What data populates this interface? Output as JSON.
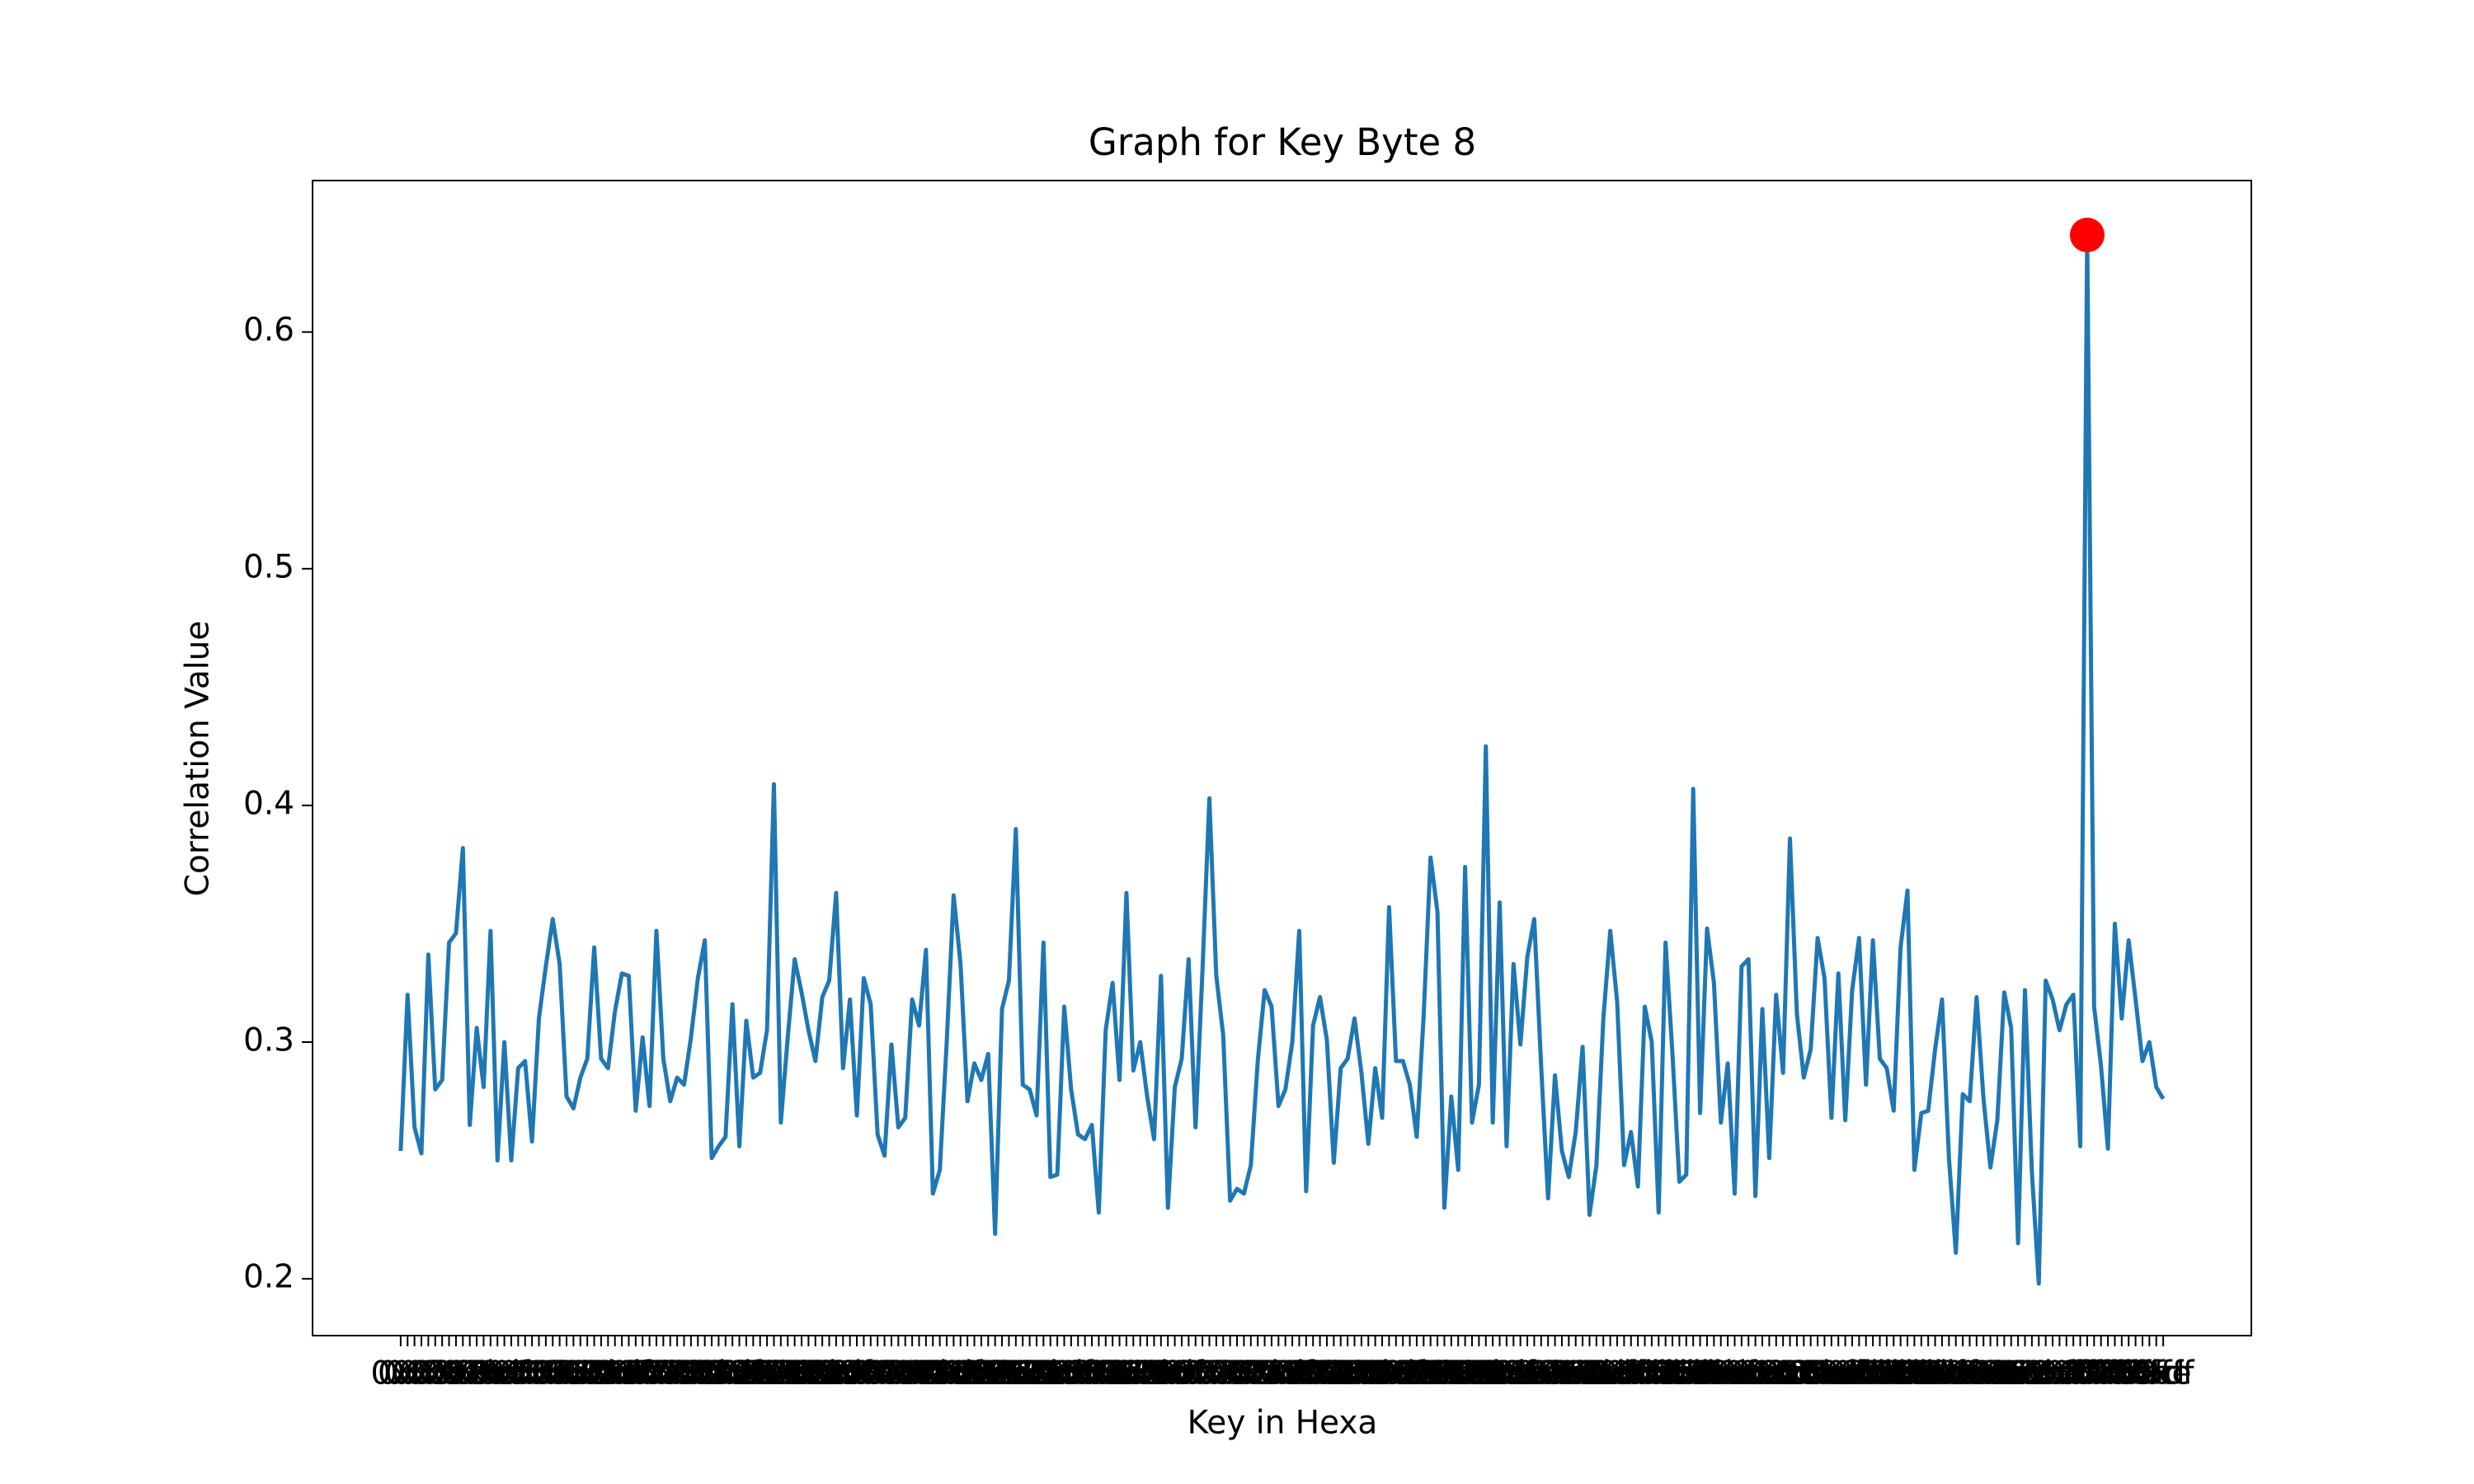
{
  "chart_data": {
    "type": "line",
    "title": "Graph for Key Byte 8",
    "x_label": "Key in Hexa",
    "y_label": "Correlation Value",
    "categories": [
      "0x0",
      "0x1",
      "0x2",
      "0x3",
      "0x4",
      "0x5",
      "0x6",
      "0x7",
      "0x8",
      "0x9",
      "0xa",
      "0xb",
      "0xc",
      "0xd",
      "0xe",
      "0xf",
      "0x10",
      "0x11",
      "0x12",
      "0x13",
      "0x14",
      "0x15",
      "0x16",
      "0x17",
      "0x18",
      "0x19",
      "0x1a",
      "0x1b",
      "0x1c",
      "0x1d",
      "0x1e",
      "0x1f",
      "0x20",
      "0x21",
      "0x22",
      "0x23",
      "0x24",
      "0x25",
      "0x26",
      "0x27",
      "0x28",
      "0x29",
      "0x2a",
      "0x2b",
      "0x2c",
      "0x2d",
      "0x2e",
      "0x2f",
      "0x30",
      "0x31",
      "0x32",
      "0x33",
      "0x34",
      "0x35",
      "0x36",
      "0x37",
      "0x38",
      "0x39",
      "0x3a",
      "0x3b",
      "0x3c",
      "0x3d",
      "0x3e",
      "0x3f",
      "0x40",
      "0x41",
      "0x42",
      "0x43",
      "0x44",
      "0x45",
      "0x46",
      "0x47",
      "0x48",
      "0x49",
      "0x4a",
      "0x4b",
      "0x4c",
      "0x4d",
      "0x4e",
      "0x4f",
      "0x50",
      "0x51",
      "0x52",
      "0x53",
      "0x54",
      "0x55",
      "0x56",
      "0x57",
      "0x58",
      "0x59",
      "0x5a",
      "0x5b",
      "0x5c",
      "0x5d",
      "0x5e",
      "0x5f",
      "0x60",
      "0x61",
      "0x62",
      "0x63",
      "0x64",
      "0x65",
      "0x66",
      "0x67",
      "0x68",
      "0x69",
      "0x6a",
      "0x6b",
      "0x6c",
      "0x6d",
      "0x6e",
      "0x6f",
      "0x70",
      "0x71",
      "0x72",
      "0x73",
      "0x74",
      "0x75",
      "0x76",
      "0x77",
      "0x78",
      "0x79",
      "0x7a",
      "0x7b",
      "0x7c",
      "0x7d",
      "0x7e",
      "0x7f",
      "0x80",
      "0x81",
      "0x82",
      "0x83",
      "0x84",
      "0x85",
      "0x86",
      "0x87",
      "0x88",
      "0x89",
      "0x8a",
      "0x8b",
      "0x8c",
      "0x8d",
      "0x8e",
      "0x8f",
      "0x90",
      "0x91",
      "0x92",
      "0x93",
      "0x94",
      "0x95",
      "0x96",
      "0x97",
      "0x98",
      "0x99",
      "0x9a",
      "0x9b",
      "0x9c",
      "0x9d",
      "0x9e",
      "0x9f",
      "0xa0",
      "0xa1",
      "0xa2",
      "0xa3",
      "0xa4",
      "0xa5",
      "0xa6",
      "0xa7",
      "0xa8",
      "0xa9",
      "0xaa",
      "0xab",
      "0xac",
      "0xad",
      "0xae",
      "0xaf",
      "0xb0",
      "0xb1",
      "0xb2",
      "0xb3",
      "0xb4",
      "0xb5",
      "0xb6",
      "0xb7",
      "0xb8",
      "0xb9",
      "0xba",
      "0xbb",
      "0xbc",
      "0xbd",
      "0xbe",
      "0xbf",
      "0xc0",
      "0xc1",
      "0xc2",
      "0xc3",
      "0xc4",
      "0xc5",
      "0xc6",
      "0xc7",
      "0xc8",
      "0xc9",
      "0xca",
      "0xcb",
      "0xcc",
      "0xcd",
      "0xce",
      "0xcf",
      "0xd0",
      "0xd1",
      "0xd2",
      "0xd3",
      "0xd4",
      "0xd5",
      "0xd6",
      "0xd7",
      "0xd8",
      "0xd9",
      "0xda",
      "0xdb",
      "0xdc",
      "0xdd",
      "0xde",
      "0xdf",
      "0xe0",
      "0xe1",
      "0xe2",
      "0xe3",
      "0xe4",
      "0xe5",
      "0xe6",
      "0xe7",
      "0xe8",
      "0xe9",
      "0xea",
      "0xeb",
      "0xec",
      "0xed",
      "0xee",
      "0xef",
      "0xf0",
      "0xf1",
      "0xf2",
      "0xf3",
      "0xf4",
      "0xf5",
      "0xf6",
      "0xf7",
      "0xf8",
      "0xf9",
      "0xfa",
      "0xfb",
      "0xfc",
      "0xfd",
      "0xfe",
      "0xff"
    ],
    "values": [
      0.254,
      0.32,
      0.264,
      0.253,
      0.337,
      0.28,
      0.284,
      0.342,
      0.346,
      0.382,
      0.265,
      0.306,
      0.281,
      0.347,
      0.25,
      0.3,
      0.25,
      0.289,
      0.292,
      0.258,
      0.31,
      0.332,
      0.352,
      0.333,
      0.277,
      0.272,
      0.285,
      0.293,
      0.34,
      0.293,
      0.289,
      0.313,
      0.329,
      0.328,
      0.271,
      0.302,
      0.273,
      0.347,
      0.293,
      0.275,
      0.285,
      0.282,
      0.302,
      0.327,
      0.343,
      0.251,
      0.256,
      0.26,
      0.316,
      0.256,
      0.309,
      0.285,
      0.287,
      0.305,
      0.409,
      0.266,
      0.302,
      0.335,
      0.321,
      0.305,
      0.292,
      0.319,
      0.326,
      0.363,
      0.289,
      0.318,
      0.269,
      0.327,
      0.316,
      0.261,
      0.252,
      0.299,
      0.264,
      0.268,
      0.318,
      0.307,
      0.339,
      0.236,
      0.246,
      0.3,
      0.362,
      0.333,
      0.275,
      0.291,
      0.284,
      0.295,
      0.219,
      0.314,
      0.326,
      0.39,
      0.282,
      0.28,
      0.269,
      0.342,
      0.243,
      0.244,
      0.315,
      0.28,
      0.261,
      0.259,
      0.265,
      0.228,
      0.305,
      0.325,
      0.284,
      0.363,
      0.288,
      0.3,
      0.277,
      0.259,
      0.328,
      0.23,
      0.281,
      0.293,
      0.335,
      0.264,
      0.33,
      0.403,
      0.328,
      0.303,
      0.233,
      0.238,
      0.236,
      0.248,
      0.292,
      0.322,
      0.315,
      0.273,
      0.28,
      0.3,
      0.347,
      0.237,
      0.307,
      0.319,
      0.301,
      0.249,
      0.289,
      0.293,
      0.31,
      0.287,
      0.257,
      0.289,
      0.268,
      0.357,
      0.292,
      0.292,
      0.282,
      0.26,
      0.311,
      0.378,
      0.355,
      0.23,
      0.277,
      0.246,
      0.374,
      0.266,
      0.282,
      0.425,
      0.266,
      0.359,
      0.256,
      0.333,
      0.299,
      0.336,
      0.352,
      0.29,
      0.234,
      0.286,
      0.254,
      0.243,
      0.262,
      0.298,
      0.227,
      0.248,
      0.31,
      0.347,
      0.317,
      0.248,
      0.262,
      0.239,
      0.315,
      0.3,
      0.228,
      0.342,
      0.295,
      0.241,
      0.244,
      0.407,
      0.27,
      0.348,
      0.325,
      0.266,
      0.291,
      0.236,
      0.332,
      0.335,
      0.235,
      0.314,
      0.251,
      0.32,
      0.287,
      0.386,
      0.312,
      0.285,
      0.297,
      0.344,
      0.327,
      0.268,
      0.329,
      0.267,
      0.322,
      0.344,
      0.282,
      0.343,
      0.293,
      0.289,
      0.271,
      0.34,
      0.364,
      0.246,
      0.27,
      0.271,
      0.297,
      0.318,
      0.251,
      0.211,
      0.278,
      0.275,
      0.319,
      0.276,
      0.247,
      0.267,
      0.321,
      0.306,
      0.215,
      0.322,
      0.245,
      0.198,
      0.326,
      0.318,
      0.305,
      0.316,
      0.32,
      0.256,
      0.641,
      0.315,
      0.29,
      0.255,
      0.35,
      0.31,
      0.343,
      0.318,
      0.292,
      0.3,
      0.281,
      0.276
    ],
    "color": "#1f77b4",
    "marker_color": "#ff0000",
    "ylim": [
      0.176,
      0.664
    ],
    "yticks": [
      0.2,
      0.3,
      0.4,
      0.5,
      0.6
    ]
  }
}
